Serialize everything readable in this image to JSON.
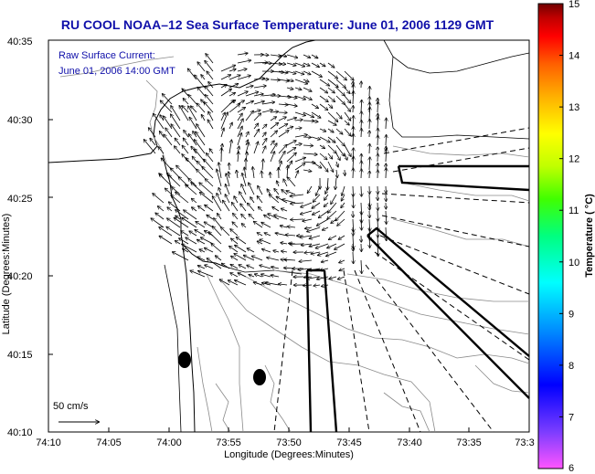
{
  "title": "RU COOL  NOAA–12  Sea Surface Temperature:  June 01, 2006 1129 GMT",
  "overlay": {
    "line1": "Raw Surface Current:",
    "line2": "June 01, 2006 14:00 GMT"
  },
  "scale_label": "50 cm/s",
  "x_axis": {
    "label": "Longitude (Degrees:Minutes)",
    "ticks": [
      "74:10",
      "74:05",
      "74:00",
      "73:55",
      "73:50",
      "73:45",
      "73:40",
      "73:35",
      "73:3"
    ]
  },
  "y_axis": {
    "label": "Latitude (Degrees:Minutes)",
    "ticks": [
      "40:35",
      "40:30",
      "40:25",
      "40:20",
      "40:15",
      "40:10"
    ]
  },
  "colorbar": {
    "label": "Temperature ( °C)",
    "ticks": [
      "15",
      "14",
      "13",
      "12",
      "11",
      "10",
      "9",
      "8",
      "7",
      "6"
    ],
    "colors": [
      "#ff55ff",
      "#7a3cff",
      "#0000ff",
      "#0090ff",
      "#00ffff",
      "#00ff80",
      "#40ff00",
      "#c0ff00",
      "#ffff00",
      "#ffb000",
      "#ff6000",
      "#ff0000",
      "#c00000",
      "#700000"
    ]
  }
}
